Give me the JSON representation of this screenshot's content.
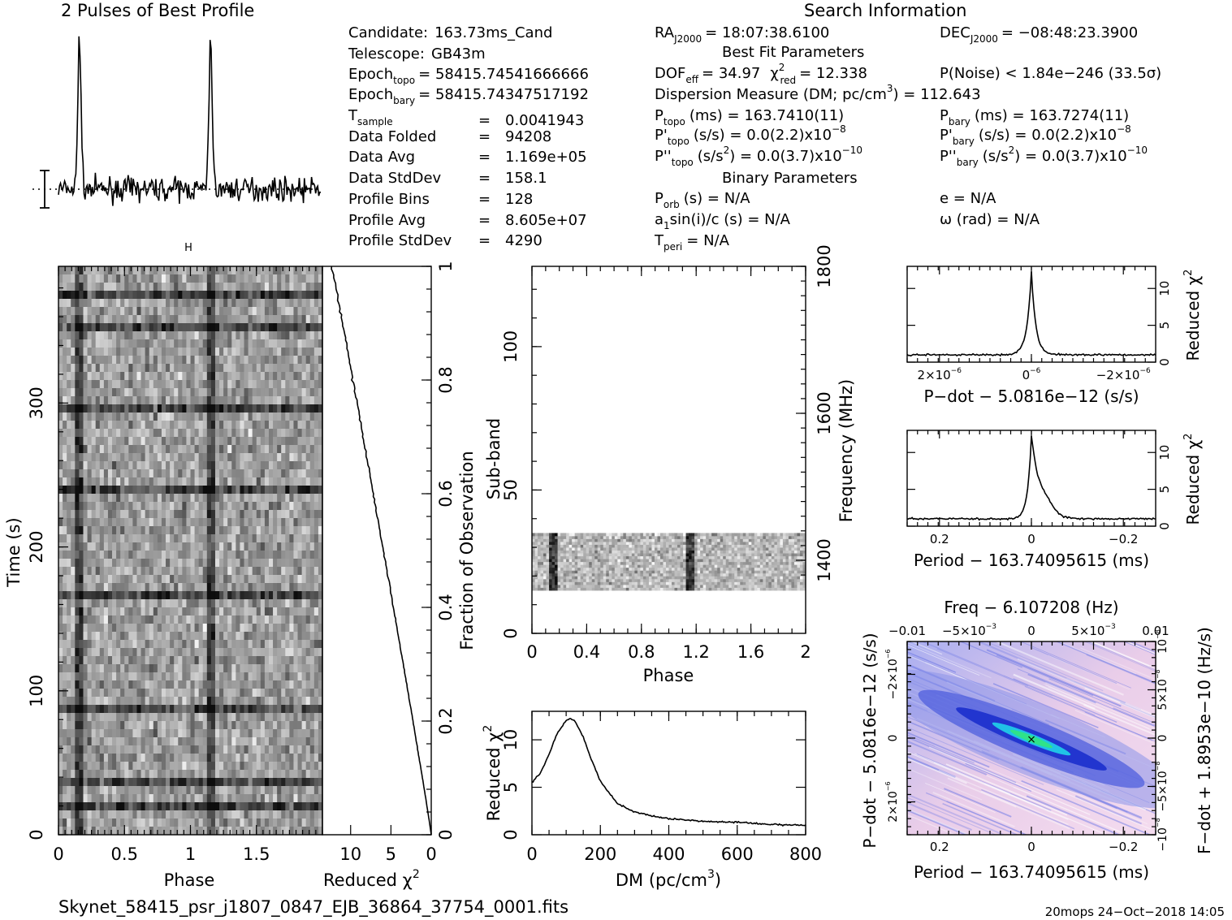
{
  "header": {
    "profile_title": "2 Pulses of Best Profile",
    "search_title": "Search Information"
  },
  "info_left": [
    {
      "label": "Candidate:",
      "value": "163.73ms_Cand"
    },
    {
      "label": "Telescope:",
      "value": "GB43m"
    },
    {
      "label": "Epoch",
      "sub": "topo",
      "value": "= 58415.74541666666"
    },
    {
      "label": "Epoch",
      "sub": "bary",
      "value": "= 58415.74347517192"
    },
    {
      "label": "T",
      "sub": "sample",
      "value": "0.0041943"
    },
    {
      "label": "Data Folded",
      "value": "94208"
    },
    {
      "label": "Data Avg",
      "value": "1.169e+05"
    },
    {
      "label": "Data StdDev",
      "value": "158.1"
    },
    {
      "label": "Profile Bins",
      "value": "128"
    },
    {
      "label": "Profile Avg",
      "value": "8.605e+07"
    },
    {
      "label": "Profile StdDev",
      "value": "4290"
    }
  ],
  "search_info": {
    "ra": "RA",
    "ra_sub": "J2000",
    "ra_value": "= 18:07:38.6100",
    "dec": "DEC",
    "dec_sub": "J2000",
    "dec_value": "= −08:48:23.3900",
    "best_fit_title": "Best Fit Parameters",
    "dof": "DOF",
    "dof_sub": "eff",
    "dof_value": "= 34.97",
    "chi_label": "χ",
    "chi_sup": "2",
    "chi_sub": "red",
    "chi_value": "= 12.338",
    "pnoise": "P(Noise) < 1.84e−246   (33.5σ)",
    "dm_line": "Dispersion Measure (DM; pc/cm",
    "dm_sup": "3",
    "dm_value": ") = 112.643",
    "ptopo": "P",
    "ptopo_sub": "topo",
    "ptopo_value": "(ms) =  163.7410(11)",
    "pbary": "P",
    "pbary_sub": "bary",
    "pbary_value": "(ms) =  163.7274(11)",
    "pdtopo": "P'",
    "pdtopo_sub": "topo",
    "pdtopo_value": "(s/s) = 0.0(2.2)x10",
    "pdtopo_exp": "−8",
    "pdbary": "P'",
    "pdbary_sub": "bary",
    "pdbary_value": "(s/s) = 0.0(2.2)x10",
    "pdbary_exp": "−8",
    "pddtopo": "P''",
    "pddtopo_sub": "topo",
    "pddtopo_value": "(s/s",
    "pddtopo_sup2": "2",
    "pddtopo_value2": ") = 0.0(3.7)x10",
    "pddtopo_exp": "−10",
    "pddbary": "P''",
    "pddbary_sub": "bary",
    "pddbary_value": "(s/s",
    "pddbary_sup2": "2",
    "pddbary_value2": ") = 0.0(3.7)x10",
    "pddbary_exp": "−10",
    "binary_title": "Binary Parameters",
    "porb": "P",
    "porb_sub": "orb",
    "porb_value": "(s) = N/A",
    "e_value": "e = N/A",
    "a1_label": "a",
    "a1_sub": "1",
    "a1_value": "sin(i)/c (s) = N/A",
    "omega_value": "ω (rad) = N/A",
    "tperi": "T",
    "tperi_sub": "peri",
    "tperi_value": "= N/A"
  },
  "footer": {
    "filename": "Skynet_58415_psr_j1807_0847_EJB_36864_37754_0001.fits",
    "stamp": "20mops 24−Oct−2018 14:05"
  },
  "colors": {
    "ink": "#000000",
    "pdot_grid_low": "#f2d8f0",
    "pdot_grid_mid": "#3a4fd8",
    "pdot_grid_high": "#2fe28a"
  },
  "chart_data": [
    {
      "type": "line",
      "name": "profile",
      "title": "2 Pulses of Best Profile",
      "x_range": [
        0,
        2
      ],
      "pulse_phases": [
        0.16,
        1.16
      ],
      "pulse_height_sigma": 8
    },
    {
      "type": "heatmap",
      "name": "time-phase",
      "xlabel": "Phase",
      "ylabel": "Time (s)",
      "x_ticks": [
        "0",
        "0.5",
        "1",
        "1.5"
      ],
      "y_ticks": [
        "0",
        "100",
        "200",
        "300"
      ],
      "x_range": [
        0,
        2
      ],
      "y_range": [
        0,
        395
      ]
    },
    {
      "type": "line",
      "name": "time-chi2",
      "xlabel": "Reduced χ",
      "xlabel_sup": "2",
      "ylabel": "Fraction of Observation",
      "x_ticks": [
        "10",
        "5",
        "0"
      ],
      "y_ticks": [
        "0",
        "0.2",
        "0.4",
        "0.6",
        "0.8",
        "1"
      ],
      "x_range": [
        13.5,
        0
      ],
      "y_range": [
        0,
        1
      ]
    },
    {
      "type": "heatmap",
      "name": "subband-phase",
      "xlabel": "Phase",
      "ylabel": "Sub-band",
      "y2label": "Frequency (MHz)",
      "x_ticks": [
        "0",
        "0.4",
        "0.8",
        "1.2",
        "1.6",
        "2"
      ],
      "y_ticks": [
        "0",
        "50",
        "100"
      ],
      "y2_ticks": [
        "1400",
        "1600",
        "1800"
      ],
      "x_range": [
        0,
        2
      ],
      "y_range": [
        0,
        128
      ],
      "occupied_subbands": [
        15,
        35
      ]
    },
    {
      "type": "line",
      "name": "dm-chi2",
      "xlabel": "DM (pc/cm",
      "xlabel_sup": "3",
      "xlabel_end": ")",
      "ylabel": "Reduced χ",
      "ylabel_sup": "2",
      "x_ticks": [
        "0",
        "200",
        "400",
        "600",
        "800"
      ],
      "y_ticks": [
        "0",
        "5",
        "10"
      ],
      "x_range": [
        0,
        800
      ],
      "y_range": [
        0,
        13
      ],
      "x": [
        0,
        25,
        50,
        75,
        100,
        112,
        125,
        150,
        175,
        200,
        250,
        300,
        350,
        400,
        500,
        600,
        700,
        800
      ],
      "y": [
        5.5,
        6.5,
        8.5,
        10.8,
        12.0,
        12.3,
        12.0,
        10.3,
        7.8,
        5.6,
        3.3,
        2.4,
        2.0,
        1.7,
        1.4,
        1.3,
        1.1,
        1.0
      ]
    },
    {
      "type": "line",
      "name": "pdot-chi2",
      "xlabel": "P−dot − 5.0816e−12 (s/s)",
      "ylabel": "Reduced χ",
      "ylabel_sup": "2",
      "x_ticks": [
        "2×10",
        "0",
        "−2×10"
      ],
      "x_tick_exp": "−6",
      "y_ticks": [
        "0",
        "5",
        "10"
      ],
      "x_range": [
        3e-06,
        -3e-06
      ],
      "y_range": [
        0,
        13
      ],
      "peak": 12.3
    },
    {
      "type": "line",
      "name": "period-chi2",
      "xlabel": "Period − 163.74095615 (ms)",
      "ylabel": "Reduced χ",
      "ylabel_sup": "2",
      "x_ticks": [
        "0.2",
        "0",
        "−0.2"
      ],
      "y_ticks": [
        "0",
        "5",
        "10"
      ],
      "x_range": [
        0.27,
        -0.27
      ],
      "y_range": [
        0,
        13
      ],
      "peak": 12.3
    },
    {
      "type": "heatmap",
      "name": "period-pdot",
      "title": "Freq − 6.107208 (Hz)",
      "xlabel": "Period − 163.74095615 (ms)",
      "ylabel": "P−dot − 5.0816e−12 (s/s)",
      "y2label": "F−dot + 1.8953e−10 (Hz/s)",
      "x_ticks": [
        "0.2",
        "0",
        "−0.2"
      ],
      "top_ticks": [
        "−0.01",
        "−5×10",
        "0",
        "5×10",
        "0.01"
      ],
      "top_tick_exp": "−3",
      "y_ticks": [
        "2×10",
        "0",
        "−2×10"
      ],
      "y_tick_exp": "−6",
      "y2_ticks": [
        "−10",
        "−5×10",
        "0",
        "5×10",
        "10"
      ],
      "y2_tick_exp": "−8"
    }
  ]
}
